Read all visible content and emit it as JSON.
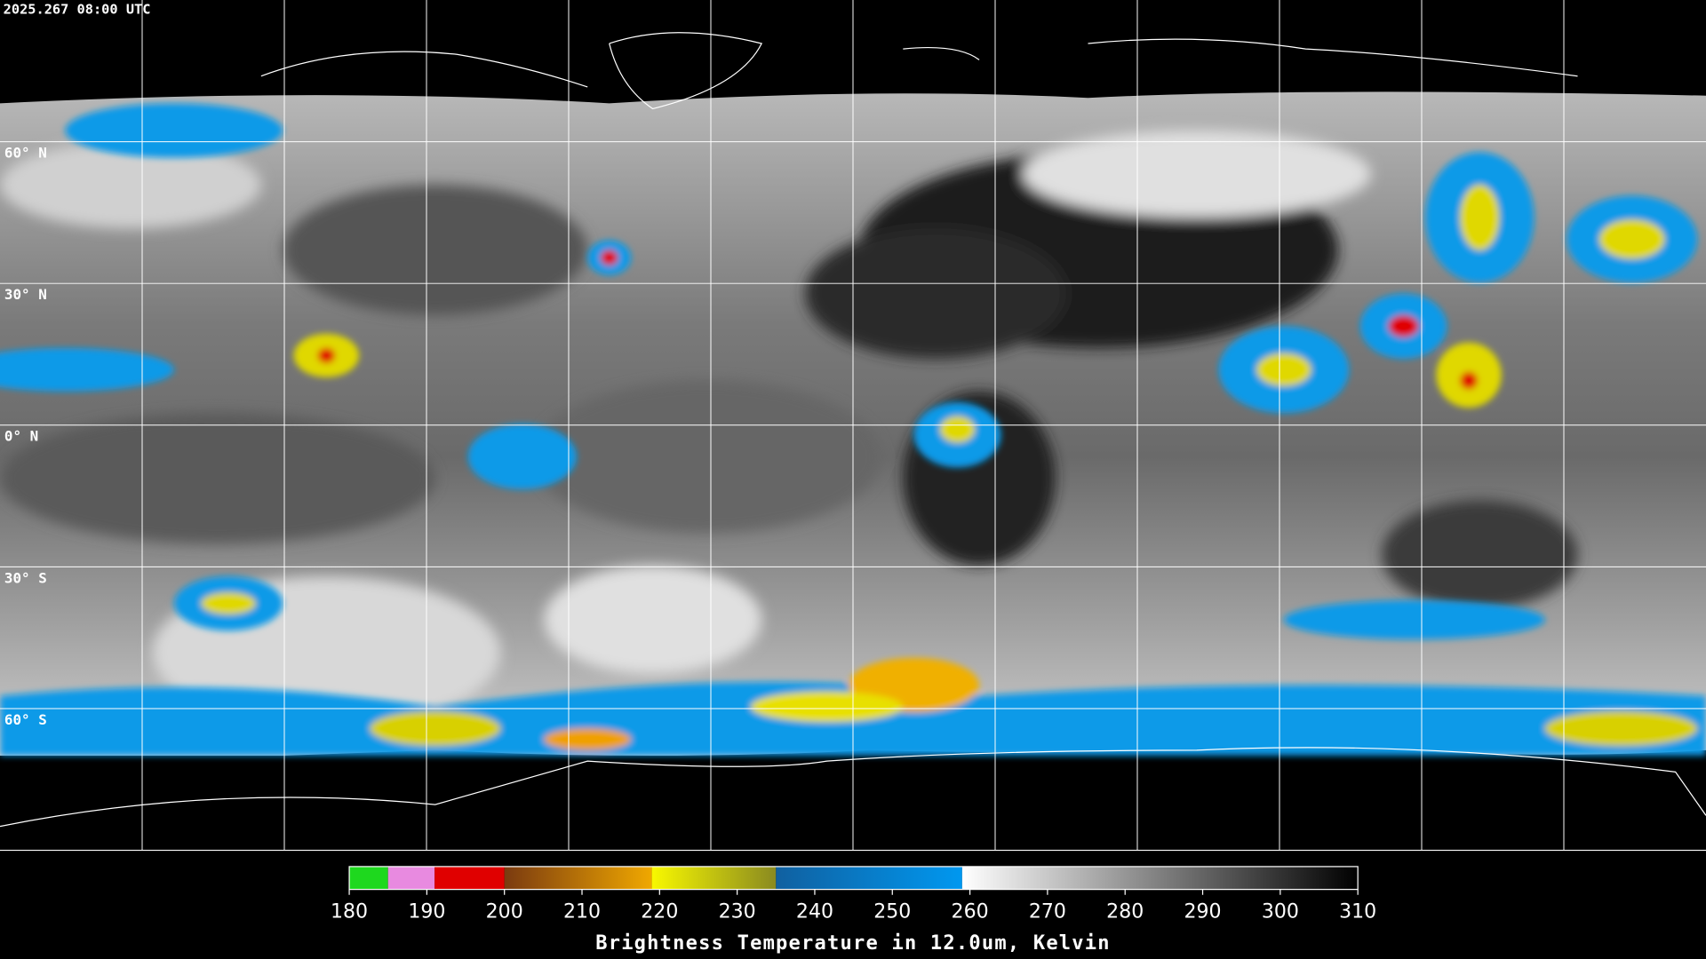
{
  "header": {
    "timestamp": "2025.267 08:00 UTC"
  },
  "map": {
    "lat_labels": [
      "60° N",
      "30° N",
      "0° N",
      "30° S",
      "60° S"
    ]
  },
  "colorbar": {
    "range": [
      180,
      310
    ],
    "ticks": [
      180,
      190,
      200,
      210,
      220,
      230,
      240,
      250,
      260,
      270,
      280,
      290,
      300,
      310
    ],
    "segments": [
      {
        "from": 180,
        "to": 185,
        "color_start": "#1ed81e",
        "color_end": "#1ed81e"
      },
      {
        "from": 185,
        "to": 191,
        "color_start": "#e88ae0",
        "color_end": "#e88ae0"
      },
      {
        "from": 191,
        "to": 200,
        "color_start": "#e00000",
        "color_end": "#e00000"
      },
      {
        "from": 200,
        "to": 219,
        "color_start": "#7a3a10",
        "color_end": "#f0a800"
      },
      {
        "from": 219,
        "to": 235,
        "color_start": "#f8f800",
        "color_end": "#8a8a20"
      },
      {
        "from": 235,
        "to": 259,
        "color_start": "#1060a0",
        "color_end": "#0098f0"
      },
      {
        "from": 259,
        "to": 310,
        "color_start": "#ffffff",
        "color_end": "#000000"
      }
    ],
    "title": "Brightness Temperature in 12.0um, Kelvin"
  }
}
